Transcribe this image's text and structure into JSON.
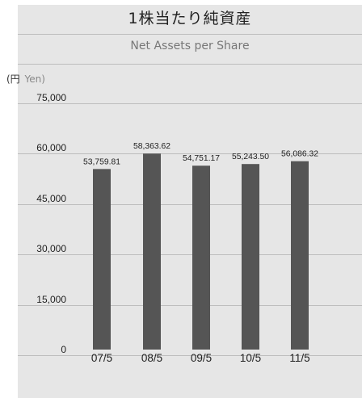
{
  "header": {
    "title": "1株当たり純資産",
    "subtitle": "Net Assets per Share"
  },
  "chart_data": {
    "type": "bar",
    "unit_label_ja": "(円",
    "unit_label_en": "Yen)",
    "categories": [
      "07/5",
      "08/5",
      "09/5",
      "10/5",
      "11/5"
    ],
    "values": [
      53759.81,
      58363.62,
      54751.17,
      55243.5,
      56086.32
    ],
    "value_labels": [
      "53,759.81",
      "58,363.62",
      "54,751.17",
      "55,243.50",
      "56,086.32"
    ],
    "y_ticks": [
      "0",
      "15,000",
      "30,000",
      "45,000",
      "60,000",
      "75,000"
    ],
    "ylim": [
      0,
      75000
    ],
    "bar_color": "#555555",
    "grid": true
  }
}
